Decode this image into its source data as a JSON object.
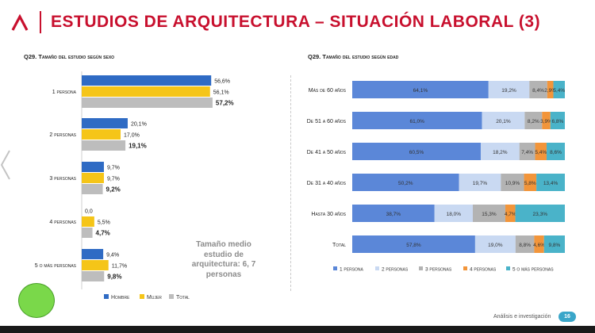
{
  "header": {
    "title": "ESTUDIOS DE ARQUITECTURA – SITUACIÓN LABORAL (3)",
    "logo_icon": "chevron-logo-icon",
    "accent_color": "#c8102e"
  },
  "note": {
    "text": "Tamaño medio estudio de arquitectura: 6, 7 personas"
  },
  "footer": {
    "label": "Análisis e investigación",
    "page_number": "16"
  },
  "chart_data": [
    {
      "type": "bar",
      "orientation": "horizontal",
      "title": "Q29. Tamaño del estudio según sexo",
      "categories": [
        "1 persona",
        "2 personas",
        "3 personas",
        "4 personas",
        "5 o más personas"
      ],
      "series": [
        {
          "name": "Hombre",
          "color": "#2f6bc4",
          "values": [
            56.6,
            20.1,
            9.7,
            0.0,
            9.4
          ],
          "labels": [
            "56,6%",
            "20,1%",
            "9,7%",
            "0,0",
            "9,4%"
          ]
        },
        {
          "name": "Mujer",
          "color": "#f5c518",
          "values": [
            56.1,
            17.0,
            9.7,
            5.5,
            11.7
          ],
          "labels": [
            "56,1%",
            "17,0%",
            "9,7%",
            "5,5%",
            "11,7%"
          ]
        },
        {
          "name": "Total",
          "color": "#bdbdbd",
          "values": [
            57.2,
            19.1,
            9.2,
            4.7,
            9.8
          ],
          "labels": [
            "57,2%",
            "19,1%",
            "9,2%",
            "4,7%",
            "9,8%"
          ]
        }
      ],
      "xlim": [
        0,
        60
      ],
      "legend": "bottom"
    },
    {
      "type": "bar",
      "orientation": "horizontal",
      "stacked": "percent",
      "title": "Q29. Tamaño del estudio según edad",
      "categories": [
        "Más de 60 años",
        "De 51 a 60 años",
        "De 41 a 50 años",
        "De 31 a 40 años",
        "Hasta 30 años",
        "Total"
      ],
      "series": [
        {
          "name": "1 persona",
          "color": "#5b87d8",
          "values": [
            64.1,
            61.0,
            60.5,
            50.2,
            38.7,
            57.8
          ],
          "labels": [
            "64,1%",
            "61,0%",
            "60,5%",
            "50,2%",
            "38,7%",
            "57,8%"
          ]
        },
        {
          "name": "2 personas",
          "color": "#c9d9f2",
          "values": [
            19.2,
            20.1,
            18.2,
            19.7,
            18.0,
            19.0
          ],
          "labels": [
            "19,2%",
            "20,1%",
            "18,2%",
            "19,7%",
            "18,0%",
            "19,0%"
          ]
        },
        {
          "name": "3 personas",
          "color": "#b3b3b3",
          "values": [
            8.4,
            8.2,
            7.4,
            10.9,
            15.3,
            8.8
          ],
          "labels": [
            "8,4%",
            "8,2%",
            "7,4%",
            "10,9%",
            "15,3%",
            "8,8%"
          ]
        },
        {
          "name": "4 personas",
          "color": "#f2953a",
          "values": [
            2.9,
            3.9,
            5.4,
            5.8,
            4.7,
            4.6
          ],
          "labels": [
            "2,9%",
            "3,9%",
            "5,4%",
            "5,8%",
            "4,7%",
            "4,6%"
          ]
        },
        {
          "name": "5 o más personas",
          "color": "#4ab3c9",
          "values": [
            5.4,
            6.8,
            8.6,
            13.4,
            23.3,
            9.8
          ],
          "labels": [
            "5,4%",
            "6,8%",
            "8,6%",
            "13,4%",
            "23,3%",
            "9,8%"
          ]
        }
      ],
      "xlim": [
        0,
        100
      ],
      "legend": "bottom"
    }
  ]
}
